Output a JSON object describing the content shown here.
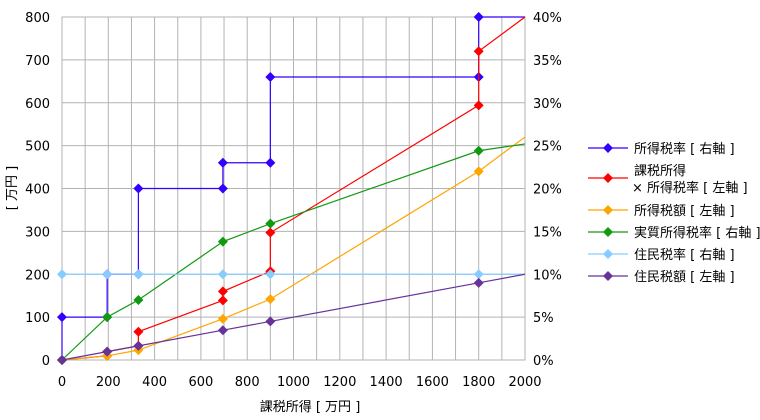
{
  "chart_data": {
    "type": "line",
    "xlabel": "課税所得 [ 万円 ]",
    "ylabel": "[ 万円 ]",
    "xlim": [
      0,
      2000
    ],
    "ylim": [
      0,
      800
    ],
    "y2lim": [
      0,
      40
    ],
    "xticks": [
      "0",
      "200",
      "400",
      "600",
      "800",
      "1000",
      "1200",
      "1400",
      "1600",
      "1800",
      "2000"
    ],
    "yticks": [
      "0",
      "100",
      "200",
      "300",
      "400",
      "500",
      "600",
      "700",
      "800"
    ],
    "y2ticks": [
      "0%",
      "5%",
      "10%",
      "15%",
      "20%",
      "25%",
      "30%",
      "35%",
      "40%"
    ],
    "grid": true,
    "legend": "right",
    "series": [
      {
        "name": "所得税率 [ 右軸 ]",
        "axis": "right",
        "color": "#3300ff",
        "points": [
          [
            0,
            0
          ],
          [
            0,
            5
          ],
          [
            195,
            5
          ],
          [
            195,
            10
          ],
          [
            330,
            10
          ],
          [
            330,
            20
          ],
          [
            695,
            20
          ],
          [
            695,
            23
          ],
          [
            900,
            23
          ],
          [
            900,
            33
          ],
          [
            1800,
            33
          ],
          [
            1800,
            40
          ],
          [
            2000,
            40
          ]
        ],
        "markers_skip_last": true
      },
      {
        "name": "課税所得\n× 所得税率 [ 左軸 ]",
        "axis": "left",
        "color": "#ff0000",
        "points": [
          [
            0,
            0
          ],
          [
            195,
            9.75
          ],
          [
            195,
            19.5
          ],
          [
            330,
            33
          ],
          [
            330,
            66
          ],
          [
            695,
            139
          ],
          [
            695,
            160
          ],
          [
            900,
            207
          ],
          [
            900,
            297
          ],
          [
            1800,
            594
          ],
          [
            1800,
            720
          ],
          [
            2000,
            800
          ]
        ],
        "markers_skip_last": true
      },
      {
        "name": "所得税額 [ 左軸 ]",
        "axis": "left",
        "color": "#ffa500",
        "points": [
          [
            0,
            0
          ],
          [
            195,
            9.75
          ],
          [
            330,
            23
          ],
          [
            695,
            96
          ],
          [
            900,
            142
          ],
          [
            1800,
            440
          ],
          [
            2000,
            520
          ]
        ],
        "markers_skip_last": true
      },
      {
        "name": "実質所得税率 [ 右軸 ]",
        "axis": "right",
        "color": "#119911",
        "points": [
          [
            0,
            0
          ],
          [
            195,
            5
          ],
          [
            330,
            7
          ],
          [
            695,
            13.8
          ],
          [
            900,
            15.9
          ],
          [
            1800,
            24.4
          ],
          [
            2000,
            25.2
          ]
        ],
        "markers_skip_last": true
      },
      {
        "name": "住民税率 [ 右軸 ]",
        "axis": "right",
        "color": "#88ccff",
        "points": [
          [
            0,
            10
          ],
          [
            195,
            10
          ],
          [
            330,
            10
          ],
          [
            695,
            10
          ],
          [
            900,
            10
          ],
          [
            1800,
            10
          ],
          [
            2000,
            10
          ]
        ],
        "markers_skip_last": true
      },
      {
        "name": "住民税額 [ 左軸 ]",
        "axis": "left",
        "color": "#663399",
        "points": [
          [
            0,
            0
          ],
          [
            195,
            19.5
          ],
          [
            330,
            33
          ],
          [
            695,
            69.5
          ],
          [
            900,
            90
          ],
          [
            1800,
            180
          ],
          [
            2000,
            200
          ]
        ],
        "markers_skip_last": true
      }
    ]
  }
}
